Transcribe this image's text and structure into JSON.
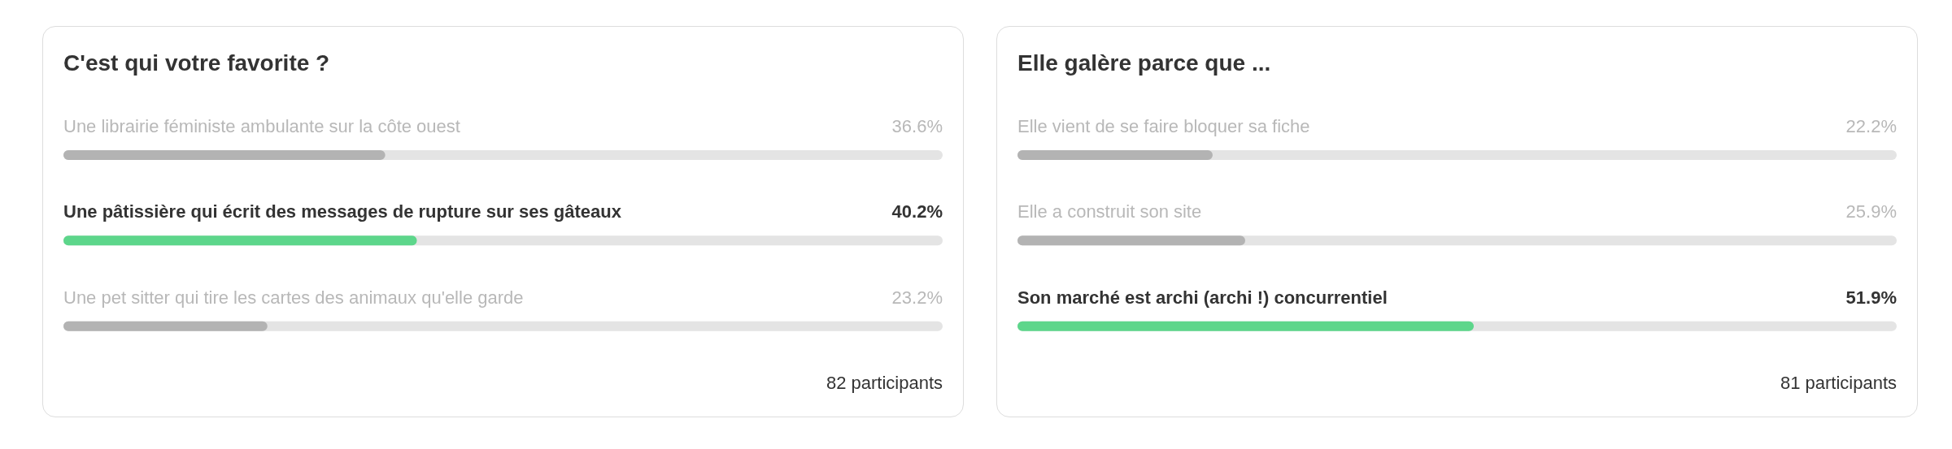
{
  "chart_data": [
    {
      "type": "bar",
      "orientation": "horizontal",
      "title": "C'est qui votre favorite ?",
      "categories": [
        "Une librairie féministe ambulante sur la côte ouest",
        "Une pâtissière qui écrit des messages de rupture sur ses gâteaux",
        "Une pet sitter qui tire les cartes des animaux qu'elle garde"
      ],
      "values": [
        36.6,
        40.2,
        23.2
      ],
      "value_labels": [
        "36.6%",
        "40.2%",
        "23.2%"
      ],
      "colors": [
        "#b3b3b3",
        "#5dd68b",
        "#b3b3b3"
      ],
      "xlim": [
        0,
        100
      ],
      "annotations": [
        "82 participants"
      ]
    },
    {
      "type": "bar",
      "orientation": "horizontal",
      "title": "Elle galère parce que ...",
      "categories": [
        "Elle vient de se faire bloquer sa fiche",
        "Elle a construit son site",
        "Son marché est archi (archi !) concurrentiel"
      ],
      "values": [
        22.2,
        25.9,
        51.9
      ],
      "value_labels": [
        "22.2%",
        "25.9%",
        "51.9%"
      ],
      "colors": [
        "#b3b3b3",
        "#b3b3b3",
        "#5dd68b"
      ],
      "xlim": [
        0,
        100
      ],
      "annotations": [
        "81 participants"
      ]
    }
  ]
}
